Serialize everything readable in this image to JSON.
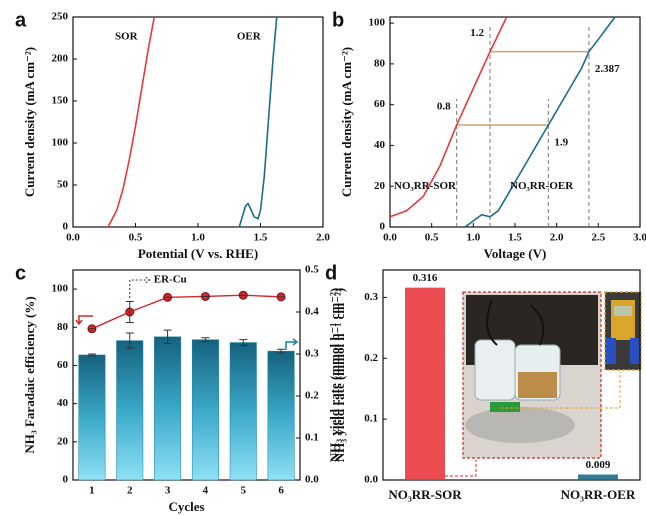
{
  "chart_data": [
    {
      "type": "line",
      "panel": "a",
      "xlabel": "Potential (V vs. RHE)",
      "ylabel": "Current density (mA cm⁻²)",
      "xlim": [
        0,
        2
      ],
      "ylim": [
        0,
        250
      ],
      "xticks": [
        {
          "value": 0,
          "label": "0.0"
        },
        0.5,
        {
          "value": 1,
          "label": "1.0"
        },
        1.5,
        {
          "value": 2,
          "label": "2.0"
        }
      ],
      "yticks": [
        0,
        50,
        100,
        150,
        200,
        250
      ],
      "series": [
        {
          "name": "SOR",
          "color": "#e8383d",
          "x": [
            0.28,
            0.35,
            0.4,
            0.45,
            0.5,
            0.55,
            0.6,
            0.65
          ],
          "values": [
            0,
            20,
            45,
            80,
            120,
            165,
            210,
            250
          ]
        },
        {
          "name": "OER",
          "color": "#1a6e8a",
          "x": [
            1.33,
            1.36,
            1.38,
            1.4,
            1.42,
            1.45,
            1.48,
            1.5,
            1.53,
            1.56,
            1.6,
            1.63
          ],
          "values": [
            0,
            15,
            25,
            28,
            22,
            12,
            10,
            20,
            60,
            120,
            200,
            250
          ]
        }
      ]
    },
    {
      "type": "line",
      "panel": "b",
      "xlabel": "Voltage (V)",
      "ylabel": "Current density (mA cm⁻²)",
      "xlim": [
        0,
        3
      ],
      "ylim": [
        0,
        103
      ],
      "xticks": [
        {
          "value": 0,
          "label": "0.0"
        },
        0.5,
        {
          "value": 1,
          "label": "1.0"
        },
        1.5,
        {
          "value": 2,
          "label": "2.0"
        },
        2.5,
        {
          "value": 3,
          "label": "3.0"
        }
      ],
      "yticks": [
        0,
        20,
        40,
        60,
        80,
        100
      ],
      "series": [
        {
          "name": "NO₃RR-SOR",
          "color": "#e8383d",
          "x": [
            0,
            0.2,
            0.4,
            0.6,
            0.8,
            1.0,
            1.2,
            1.4
          ],
          "values": [
            5,
            8,
            15,
            30,
            50,
            68,
            86,
            103
          ]
        },
        {
          "name": "NO₃RR-OER",
          "color": "#1a6e8a",
          "x": [
            0.9,
            1.0,
            1.1,
            1.2,
            1.3,
            1.5,
            1.7,
            1.9,
            2.1,
            2.3,
            2.387,
            2.5,
            2.7
          ],
          "values": [
            0,
            3,
            6,
            5,
            8,
            22,
            36,
            50,
            64,
            78,
            86,
            92,
            103
          ]
        }
      ],
      "hlines": [
        {
          "y": 50,
          "from": 0.8,
          "to": 1.9
        },
        {
          "y": 86,
          "from": 1.2,
          "to": 2.387
        }
      ]
    },
    {
      "type": "bar+line",
      "panel": "c",
      "xlabel": "Cycles",
      "ylabel": "NH₃ Faradaic efficiency (%)",
      "y2label": "NH₃ yield rate (mmol h⁻¹ cm⁻²)",
      "annotation": "ER-Cu",
      "categories": [
        "1",
        "2",
        "3",
        "4",
        "5",
        "6"
      ],
      "ylim": [
        0,
        110
      ],
      "yticks": [
        0,
        20,
        40,
        60,
        80,
        100
      ],
      "y2lim": [
        0,
        0.5
      ],
      "y2ticks": [
        {
          "value": 0,
          "label": "0.0"
        },
        0.1,
        0.2,
        0.3,
        0.4,
        0.5
      ],
      "series": [
        {
          "type": "bar",
          "color": "#1b7fa0",
          "values": [
            65.5,
            73,
            75,
            73.5,
            72,
            67.5
          ],
          "errors": [
            0.5,
            4,
            3.5,
            1,
            1.5,
            1
          ]
        },
        {
          "type": "line",
          "axis": "y2",
          "color": "#d0282c",
          "values": [
            0.36,
            0.4,
            0.435,
            0.437,
            0.44,
            0.436
          ],
          "errors": [
            0,
            0.025,
            0,
            0,
            0,
            0
          ]
        }
      ]
    },
    {
      "type": "bar",
      "panel": "d",
      "ylabel": "NH₃ yield rate (mmol h⁻¹ cm⁻²)",
      "categories": [
        "NO₃RR-SOR",
        "NO₃RR-OER"
      ],
      "values": [
        0.316,
        0.009
      ],
      "colors": [
        "#e8383d",
        "#1a6e8a"
      ],
      "ylim": [
        0,
        0.345
      ],
      "yticks": [
        {
          "value": 0,
          "label": "0.0"
        },
        0.1,
        0.2,
        0.3
      ]
    }
  ]
}
